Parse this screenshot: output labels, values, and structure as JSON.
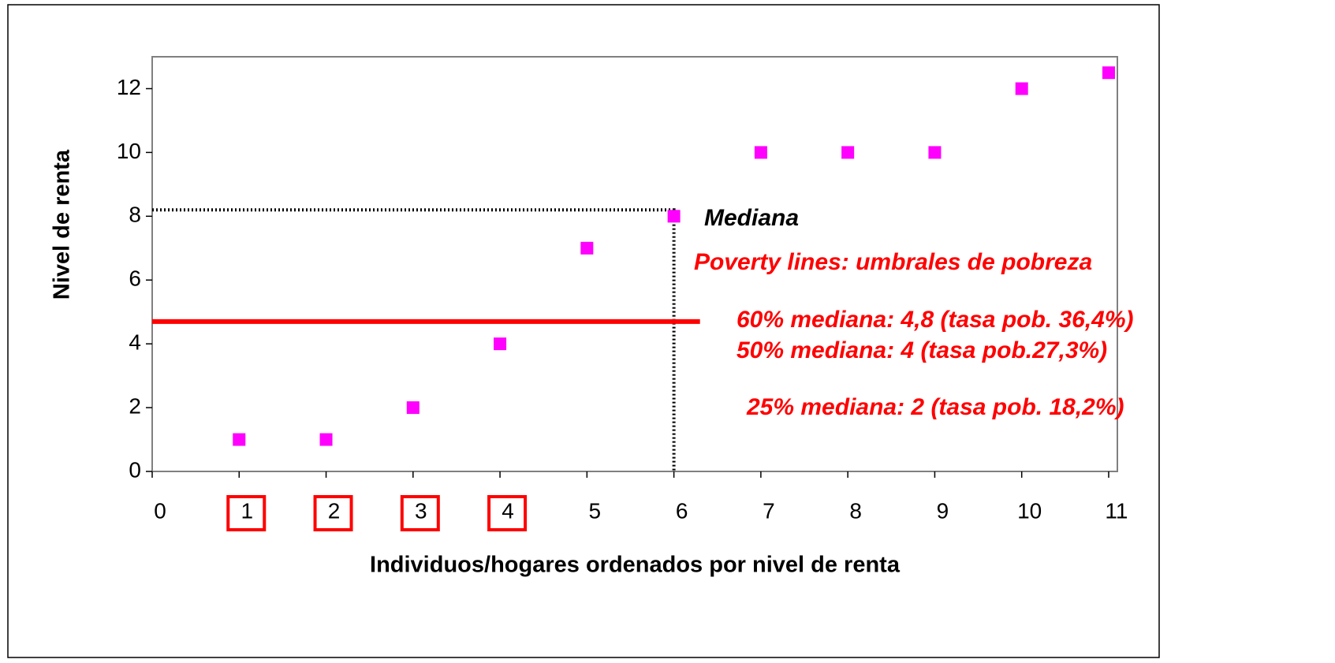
{
  "chart_data": {
    "type": "scatter",
    "x_label": "Individuos/hogares ordenados por nivel de renta",
    "y_label": "Nivel de renta",
    "x": [
      1,
      2,
      3,
      4,
      5,
      6,
      7,
      8,
      9,
      10,
      11
    ],
    "values": [
      1,
      1,
      2,
      4,
      7,
      8,
      10,
      10,
      10,
      12,
      12.5
    ],
    "color": "#ff00ff",
    "xlim": [
      0,
      11.1
    ],
    "ylim": [
      0,
      13
    ],
    "xticks": [
      0,
      1,
      2,
      3,
      4,
      5,
      6,
      7,
      8,
      9,
      10,
      11
    ],
    "yticks": [
      0,
      2,
      4,
      6,
      8,
      10,
      12
    ],
    "boxed_xticks": [
      1,
      2,
      3,
      4
    ],
    "median_guide": {
      "x": 6,
      "y": 8.2
    },
    "poverty_line": {
      "y": 4.7,
      "x_end": 6.3,
      "color": "#ff0000"
    },
    "annotations": [
      "Mediana",
      "Poverty lines: umbrales de pobreza",
      "60% mediana: 4,8 (tasa pob. 36,4%)",
      "50% mediana: 4 (tasa pob.27,3%)",
      "25% mediana: 2 (tasa pob. 18,2%)"
    ]
  }
}
